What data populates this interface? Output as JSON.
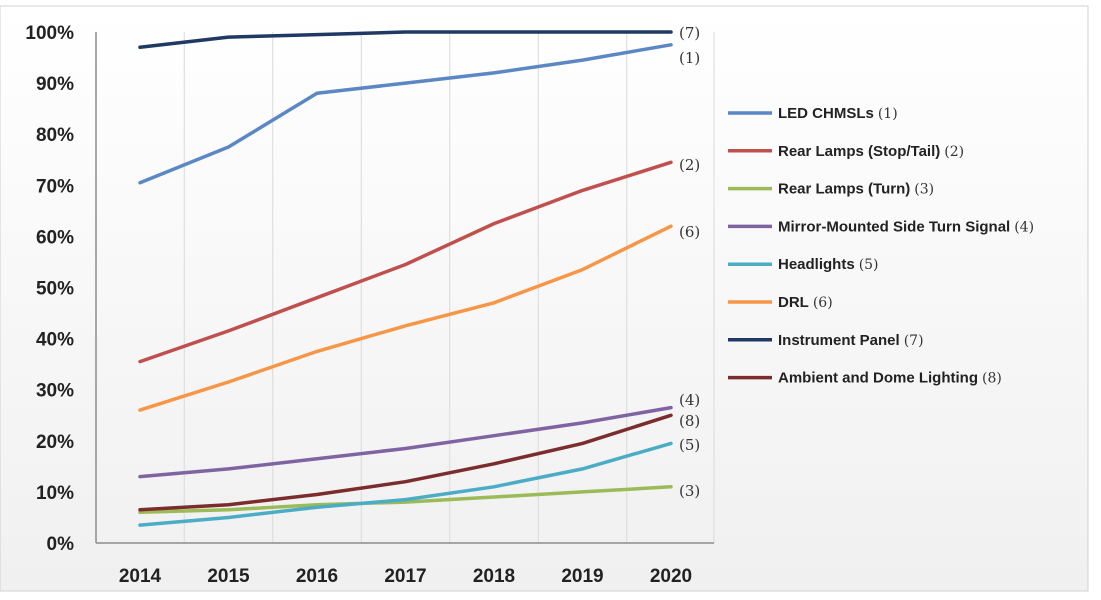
{
  "chart_data": {
    "type": "line",
    "title": "",
    "xlabel": "",
    "ylabel": "",
    "x": [
      "2014",
      "2015",
      "2016",
      "2017",
      "2018",
      "2019",
      "2020"
    ],
    "ylim": [
      0,
      100
    ],
    "yticks": [
      "0%",
      "10%",
      "20%",
      "30%",
      "40%",
      "50%",
      "60%",
      "70%",
      "80%",
      "90%",
      "100%"
    ],
    "grid": "vertical",
    "legend_position": "right",
    "series": [
      {
        "name": "LED CHMSLs",
        "marker": "(1)",
        "end_label": "(1)",
        "color": "#5B87C4",
        "values": [
          70.5,
          77.5,
          88,
          90,
          92,
          94.5,
          97.5
        ]
      },
      {
        "name": "Rear Lamps (Stop/Tail)",
        "marker": "(2)",
        "end_label": "(2)",
        "color": "#C0504D",
        "values": [
          35.5,
          41.5,
          48,
          54.5,
          62.5,
          69,
          74.5
        ]
      },
      {
        "name": "Rear Lamps (Turn)",
        "marker": "(3)",
        "end_label": "(3)",
        "color": "#9BBB59",
        "values": [
          6,
          6.5,
          7.5,
          8,
          9,
          10,
          11
        ]
      },
      {
        "name": "Mirror-Mounted Side Turn Signal",
        "marker": "(4)",
        "end_label": "(4)",
        "color": "#8064A2",
        "values": [
          13,
          14.5,
          16.5,
          18.5,
          21,
          23.5,
          26.5
        ]
      },
      {
        "name": "Headlights",
        "marker": "(5)",
        "end_label": "(5)",
        "color": "#4BACC6",
        "values": [
          3.5,
          5,
          7,
          8.5,
          11,
          14.5,
          19.5
        ]
      },
      {
        "name": "DRL",
        "marker": "(6)",
        "end_label": "(6)",
        "color": "#F79646",
        "values": [
          26,
          31.5,
          37.5,
          42.5,
          47,
          53.5,
          62
        ]
      },
      {
        "name": "Instrument Panel",
        "marker": "(7)",
        "end_label": "(7)",
        "color": "#1F3864",
        "values": [
          97,
          99,
          99.5,
          100,
          100,
          100,
          100
        ]
      },
      {
        "name": "Ambient and Dome Lighting",
        "marker": "(8)",
        "end_label": "(8)",
        "color": "#7B2C2C",
        "values": [
          6.5,
          7.5,
          9.5,
          12,
          15.5,
          19.5,
          25
        ]
      }
    ]
  }
}
